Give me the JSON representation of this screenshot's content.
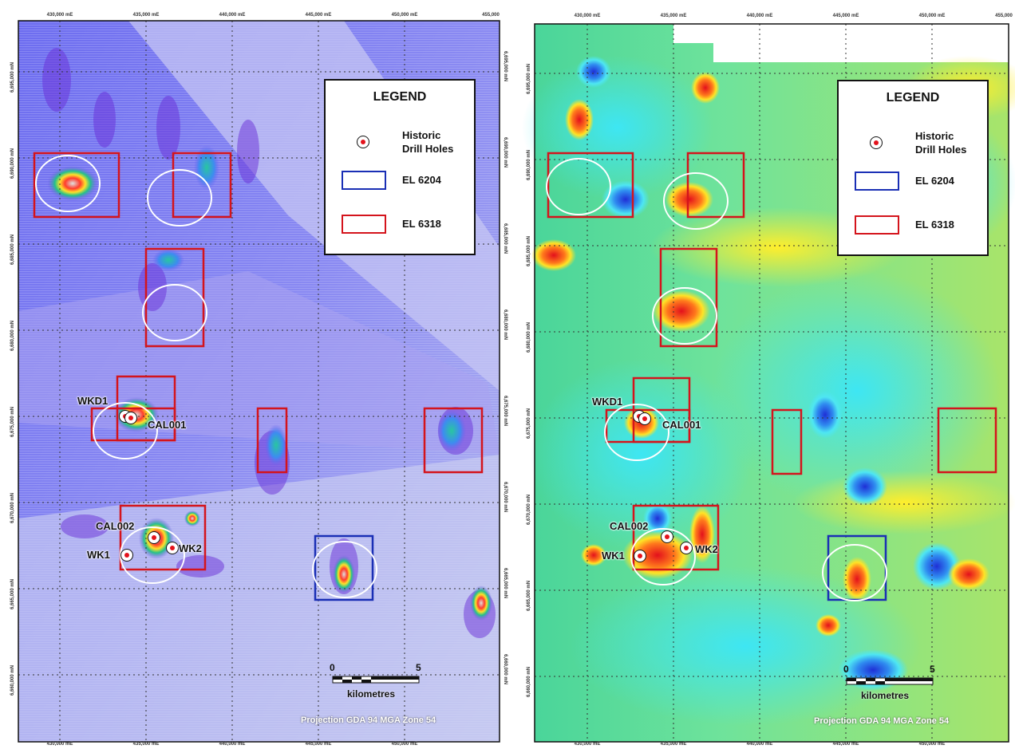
{
  "coords": {
    "eastings": [
      "430,000 mE",
      "435,000 mE",
      "440,000 mE",
      "445,000 mE",
      "450,000 mE",
      "455,000"
    ],
    "northings": [
      "6,695,000 mN",
      "6,690,000 mN",
      "6,685,000 mN",
      "6,680,000 mN",
      "6,675,000 mN",
      "6,670,000 mN",
      "6,665,000 mN",
      "6,660,000 mN"
    ]
  },
  "legend": {
    "title": "LEGEND",
    "drill_holes_line1": "Historic",
    "drill_holes_line2": "Drill Holes",
    "el6204": "EL 6204",
    "el6318": "EL 6318"
  },
  "drill_holes": {
    "wkd1": "WKD1",
    "cal001": "CAL001",
    "cal002": "CAL002",
    "wk1": "WK1",
    "wk2": "WK2"
  },
  "scale": {
    "zero": "0",
    "five": "5",
    "unit": "kilometres"
  },
  "projection": "Projection GDA 94 MGA Zone 54",
  "colors": {
    "el6204": "#1a2fb5",
    "el6318": "#d4141c",
    "drill_dot": "#e3121b",
    "target_circle": "#ffffff"
  },
  "panels": [
    {
      "name": "magnetics-map",
      "description_colors": "blue-purple shaded magnetic relief"
    },
    {
      "name": "gravity-map",
      "description_colors": "blue-green-yellow-red gravity colour map"
    }
  ]
}
